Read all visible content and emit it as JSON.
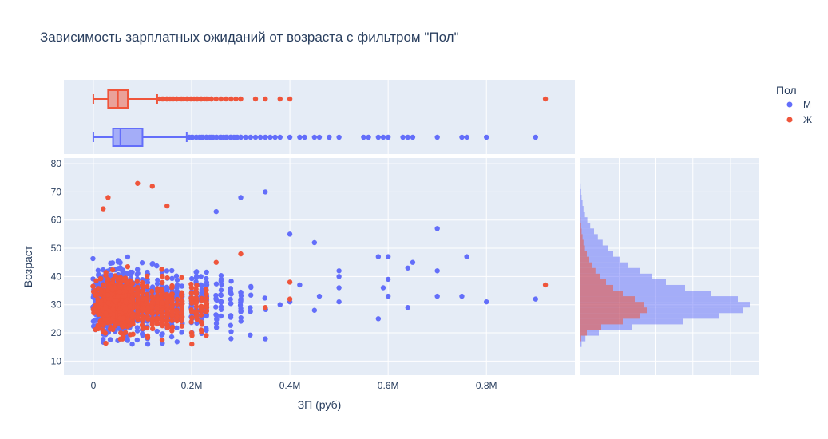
{
  "chart_data": {
    "type": "scatter",
    "title": "Зависимость зарплатных ожиданий от возраста с фильтром \"Пол\"",
    "xlabel": "ЗП (руб)",
    "ylabel": "Возраст",
    "xlim": [
      -60000,
      980000
    ],
    "ylim": [
      5,
      82
    ],
    "x_ticks": [
      0,
      200000,
      400000,
      600000,
      800000
    ],
    "x_tick_labels": [
      "0",
      "0.2M",
      "0.4M",
      "0.6M",
      "0.8M"
    ],
    "y_ticks": [
      10,
      20,
      30,
      40,
      50,
      60,
      70,
      80
    ],
    "y_tick_labels": [
      "10",
      "20",
      "30",
      "40",
      "50",
      "60",
      "70",
      "80"
    ],
    "legend": {
      "title": "Пол",
      "position": "top-right",
      "entries": [
        {
          "name": "М",
          "color": "#636efa"
        },
        {
          "name": "Ж",
          "color": "#ef553b"
        }
      ]
    },
    "grid": true,
    "series": [
      {
        "name": "М",
        "color": "#636efa",
        "scatter_outliers": [
          [
            900000,
            32
          ],
          [
            800000,
            31
          ],
          [
            760000,
            47
          ],
          [
            750000,
            33
          ],
          [
            700000,
            57
          ],
          [
            700000,
            42
          ],
          [
            700000,
            33
          ],
          [
            650000,
            45
          ],
          [
            640000,
            43
          ],
          [
            640000,
            29
          ],
          [
            600000,
            47
          ],
          [
            600000,
            39
          ],
          [
            600000,
            33
          ],
          [
            590000,
            36
          ],
          [
            580000,
            47
          ],
          [
            580000,
            25
          ],
          [
            500000,
            36
          ],
          [
            500000,
            31
          ],
          [
            500000,
            40
          ],
          [
            500000,
            42
          ],
          [
            450000,
            52
          ],
          [
            450000,
            28
          ],
          [
            460000,
            33
          ],
          [
            420000,
            37
          ],
          [
            400000,
            31
          ],
          [
            380000,
            30
          ],
          [
            400000,
            55
          ],
          [
            350000,
            70
          ],
          [
            300000,
            68
          ],
          [
            250000,
            63
          ]
        ],
        "box": {
          "min": 0,
          "q1": 40000,
          "median": 55000,
          "q3": 100000,
          "upper_fence": 190000
        },
        "box_outliers": [
          900000,
          800000,
          760000,
          750000,
          700000,
          650000,
          640000,
          630000,
          600000,
          590000,
          580000,
          560000,
          550000,
          500000,
          480000,
          460000,
          450000,
          430000,
          420000,
          400000,
          380000,
          370000,
          360000,
          350000,
          340000,
          330000,
          320000,
          310000,
          300000,
          290000,
          280000,
          270000,
          260000,
          250000,
          240000,
          230000,
          220000,
          210000,
          200000
        ],
        "age_histogram": {
          "bins": [
            15,
            17,
            19,
            21,
            23,
            25,
            27,
            29,
            31,
            33,
            35,
            37,
            39,
            41,
            43,
            45,
            47,
            49,
            51,
            53,
            55,
            57,
            59,
            61,
            63,
            65,
            67,
            69,
            71,
            73,
            75
          ],
          "counts": [
            4,
            12,
            40,
            110,
            215,
            290,
            340,
            355,
            330,
            275,
            220,
            180,
            150,
            125,
            100,
            85,
            70,
            60,
            48,
            38,
            30,
            22,
            16,
            11,
            8,
            6,
            4,
            3,
            2,
            1,
            1
          ]
        }
      },
      {
        "name": "Ж",
        "color": "#ef553b",
        "scatter_outliers": [
          [
            920000,
            37
          ],
          [
            400000,
            38
          ],
          [
            400000,
            32
          ],
          [
            350000,
            29
          ],
          [
            300000,
            48
          ],
          [
            250000,
            45
          ],
          [
            200000,
            20
          ],
          [
            150000,
            65
          ],
          [
            120000,
            72
          ],
          [
            90000,
            73
          ],
          [
            30000,
            68
          ],
          [
            20000,
            64
          ]
        ],
        "box": {
          "min": 0,
          "q1": 30000,
          "median": 50000,
          "q3": 70000,
          "upper_fence": 130000
        },
        "box_outliers": [
          920000,
          400000,
          380000,
          350000,
          330000,
          300000,
          290000,
          280000,
          270000,
          260000,
          250000,
          240000,
          230000,
          220000,
          210000,
          200000,
          190000,
          180000,
          170000,
          160000,
          150000,
          140000
        ],
        "age_histogram": {
          "bins": [
            17,
            19,
            21,
            23,
            25,
            27,
            29,
            31,
            33,
            35,
            37,
            39,
            41,
            43,
            45,
            47,
            49,
            51,
            53,
            55,
            57,
            59,
            61,
            63
          ],
          "counts": [
            3,
            15,
            45,
            90,
            125,
            140,
            135,
            115,
            90,
            70,
            55,
            42,
            33,
            26,
            20,
            15,
            11,
            8,
            6,
            4,
            3,
            2,
            1,
            1
          ]
        }
      }
    ]
  }
}
